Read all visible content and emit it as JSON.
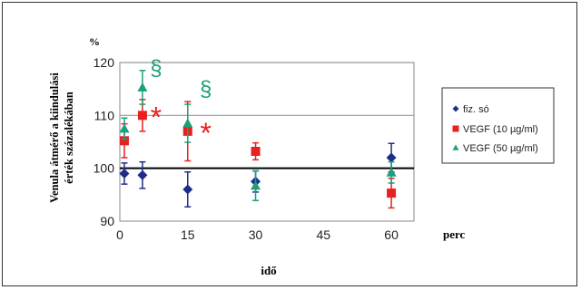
{
  "chart_data": {
    "type": "scatter",
    "ylabel": "Venula átmérő a kiindulási érték százalékában",
    "yunit": "%",
    "xlabel": "idő",
    "xunit": "perc",
    "xlim": [
      0,
      65
    ],
    "ylim": [
      90,
      120
    ],
    "xticks": [
      "0",
      "15",
      "30",
      "45",
      "60"
    ],
    "yticks": [
      "90",
      "100",
      "110",
      "120"
    ],
    "reference_line": 100,
    "grid": "horizontal lines at 110 and 120",
    "legend_position": "right",
    "series": [
      {
        "name": "fiz. só",
        "color": "#1f2d8a",
        "marker": "diamond",
        "points": [
          {
            "x": 1,
            "y": 99,
            "err": 2
          },
          {
            "x": 5,
            "y": 98.7,
            "err": 2.5
          },
          {
            "x": 15,
            "y": 96,
            "err": 3.3
          },
          {
            "x": 30,
            "y": 97.5,
            "err": 2
          },
          {
            "x": 60,
            "y": 102,
            "err": 2.7
          }
        ]
      },
      {
        "name": "VEGF (10 µg/ml)",
        "color": "#e8201f",
        "marker": "square",
        "points": [
          {
            "x": 1,
            "y": 105.2,
            "err": 3.2
          },
          {
            "x": 5,
            "y": 110,
            "err": 3
          },
          {
            "x": 15,
            "y": 107,
            "err": 5.6
          },
          {
            "x": 30,
            "y": 103.2,
            "err": 1.6
          },
          {
            "x": 60,
            "y": 95.3,
            "err": 2.8
          }
        ]
      },
      {
        "name": "VEGF (50 µg/ml)",
        "color": "#1aa07a",
        "marker": "triangle",
        "points": [
          {
            "x": 1,
            "y": 107.5,
            "err": 2
          },
          {
            "x": 5,
            "y": 115.3,
            "err": 3.2
          },
          {
            "x": 15,
            "y": 108.5,
            "err": 3.6
          },
          {
            "x": 30,
            "y": 96.7,
            "err": 2.8
          },
          {
            "x": 60,
            "y": 99.2,
            "err": 2
          }
        ]
      }
    ],
    "annotations": [
      {
        "text": "§",
        "x": 8,
        "y": 119,
        "color": "#1aa07a"
      },
      {
        "text": "§",
        "x": 19,
        "y": 115,
        "color": "#1aa07a"
      },
      {
        "text": "*",
        "x": 8,
        "y": 110.5,
        "color": "#e8201f"
      },
      {
        "text": "*",
        "x": 19,
        "y": 107.5,
        "color": "#e8201f"
      }
    ]
  }
}
